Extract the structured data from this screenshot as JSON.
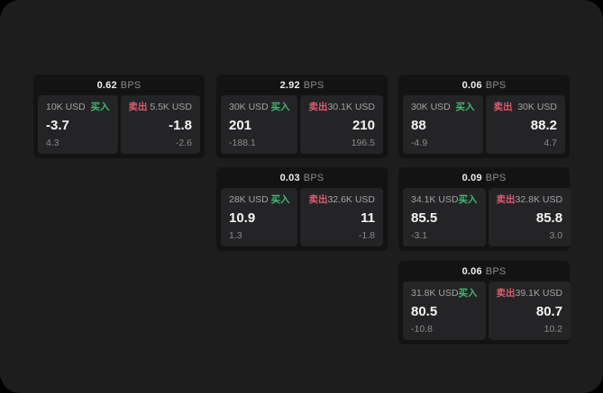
{
  "window": {
    "background": "#1d1d1e",
    "outer_background": "#000000"
  },
  "labels": {
    "bps_unit": "BPS",
    "buy": "买入",
    "sell": "卖出"
  },
  "colors": {
    "buy": "#42b873",
    "sell": "#dd5c6e",
    "price_text": "#f4f4f4",
    "muted_text": "#a3a3a3",
    "faint_text": "#8b8b8b",
    "card_bg": "#131313",
    "panel_bg": "#242426"
  },
  "cards": [
    {
      "row": 0,
      "col": 0,
      "bps": "0.62",
      "bid": {
        "size": "10K USD",
        "price": "-3.7",
        "change": "4.3"
      },
      "ask": {
        "size": "5.5K USD",
        "price": "-1.8",
        "change": "-2.6"
      }
    },
    {
      "row": 0,
      "col": 1,
      "bps": "2.92",
      "bid": {
        "size": "30K USD",
        "price": "201",
        "change": "-188.1"
      },
      "ask": {
        "size": "30.1K USD",
        "price": "210",
        "change": "196.5"
      }
    },
    {
      "row": 0,
      "col": 2,
      "bps": "0.06",
      "bid": {
        "size": "30K USD",
        "price": "88",
        "change": "-4.9"
      },
      "ask": {
        "size": "30K USD",
        "price": "88.2",
        "change": "4.7"
      }
    },
    {
      "row": 1,
      "col": 1,
      "bps": "0.03",
      "bid": {
        "size": "28K USD",
        "price": "10.9",
        "change": "1.3"
      },
      "ask": {
        "size": "32.6K USD",
        "price": "11",
        "change": "-1.8"
      }
    },
    {
      "row": 1,
      "col": 2,
      "bps": "0.09",
      "bid": {
        "size": "34.1K USD",
        "price": "85.5",
        "change": "-3.1"
      },
      "ask": {
        "size": "32.8K USD",
        "price": "85.8",
        "change": "3.0"
      }
    },
    {
      "row": 2,
      "col": 2,
      "bps": "0.06",
      "bid": {
        "size": "31.8K USD",
        "price": "80.5",
        "change": "-10.8"
      },
      "ask": {
        "size": "39.1K USD",
        "price": "80.7",
        "change": "10.2"
      }
    }
  ]
}
